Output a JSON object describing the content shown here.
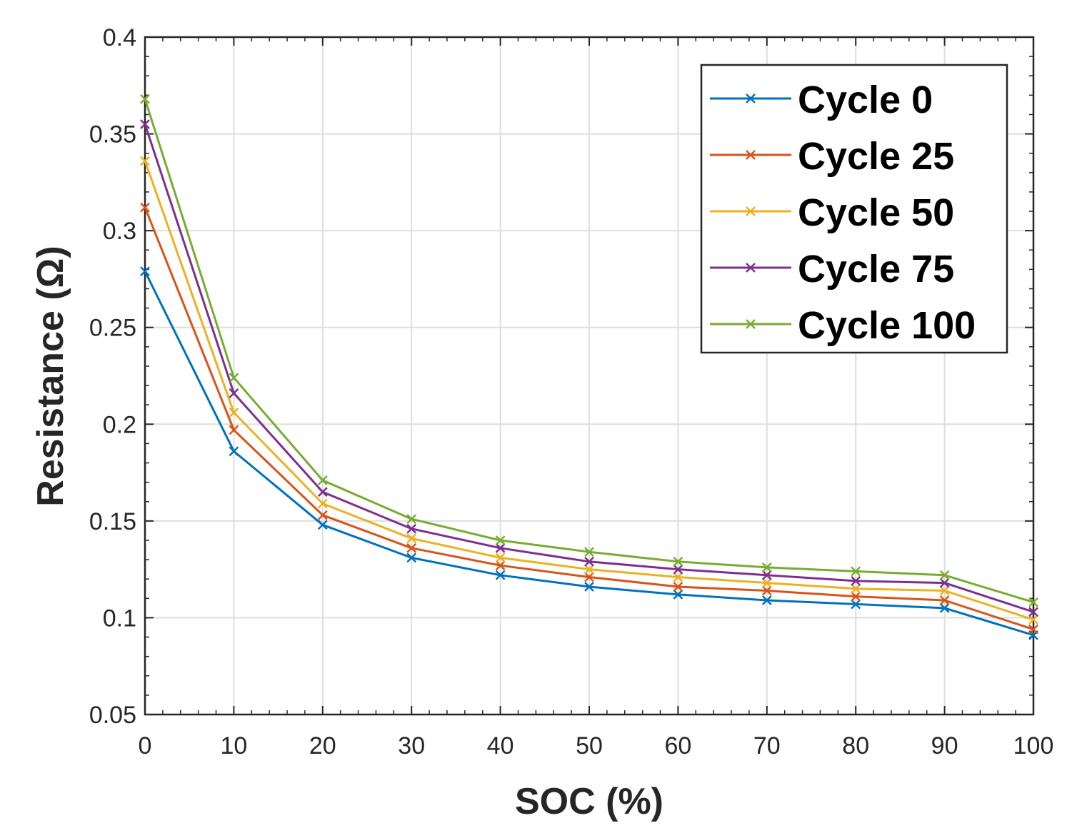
{
  "chart_data": {
    "type": "line",
    "title": "",
    "xlabel": "SOC (%)",
    "ylabel": "Resistance (Ω)",
    "xlim": [
      0,
      100
    ],
    "ylim": [
      0.05,
      0.4
    ],
    "xticks": [
      0,
      10,
      20,
      30,
      40,
      50,
      60,
      70,
      80,
      90,
      100
    ],
    "xtick_labels": [
      "0",
      "10",
      "20",
      "30",
      "40",
      "50",
      "60",
      "70",
      "80",
      "90",
      "100"
    ],
    "yticks": [
      0.05,
      0.1,
      0.15,
      0.2,
      0.25,
      0.3,
      0.35,
      0.4
    ],
    "ytick_labels": [
      "0.05",
      "0.1",
      "0.15",
      "0.2",
      "0.25",
      "0.3",
      "0.35",
      "0.4"
    ],
    "grid": true,
    "legend_position": "top-right",
    "marker": "x",
    "x": [
      0,
      10,
      20,
      30,
      40,
      50,
      60,
      70,
      80,
      90,
      100
    ],
    "series": [
      {
        "name": "Cycle 0",
        "color": "#0072BD",
        "values": [
          0.279,
          0.186,
          0.148,
          0.131,
          0.122,
          0.116,
          0.112,
          0.109,
          0.107,
          0.105,
          0.091
        ]
      },
      {
        "name": "Cycle 25",
        "color": "#D95319",
        "values": [
          0.312,
          0.197,
          0.153,
          0.136,
          0.127,
          0.121,
          0.116,
          0.114,
          0.111,
          0.109,
          0.094
        ]
      },
      {
        "name": "Cycle 50",
        "color": "#EDB120",
        "values": [
          0.336,
          0.206,
          0.159,
          0.141,
          0.131,
          0.125,
          0.121,
          0.118,
          0.115,
          0.114,
          0.099
        ]
      },
      {
        "name": "Cycle 75",
        "color": "#7E2F8E",
        "values": [
          0.355,
          0.216,
          0.165,
          0.146,
          0.136,
          0.129,
          0.125,
          0.122,
          0.119,
          0.118,
          0.103
        ]
      },
      {
        "name": "Cycle 100",
        "color": "#77AC30",
        "values": [
          0.368,
          0.224,
          0.171,
          0.151,
          0.14,
          0.134,
          0.129,
          0.126,
          0.124,
          0.122,
          0.108
        ]
      }
    ]
  }
}
